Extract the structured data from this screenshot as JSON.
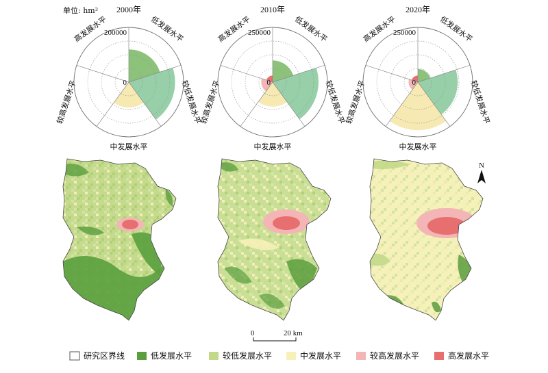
{
  "unit_label": "单位: hm²",
  "categories": [
    "低发展水平",
    "较低发展水平",
    "中发展水平",
    "较高发展水平",
    "高发展水平"
  ],
  "colors": {
    "low": "#5a9e3e",
    "lower": "#c2d98a",
    "mid": "#f7f0b8",
    "higher": "#f3b5b5",
    "high": "#e76f6f",
    "polar_low": "#8cc27a",
    "polar_lower": "#97cfa8",
    "polar_mid": "#f6e9b2"
  },
  "chart_data": [
    {
      "type": "polar-area",
      "title": "2000年",
      "categories": [
        "低发展水平",
        "较低发展水平",
        "中发展水平",
        "较高发展水平",
        "高发展水平"
      ],
      "values": [
        100000,
        200000,
        60000,
        0,
        0
      ],
      "ticks": [
        0,
        200000
      ],
      "rmax": 280000
    },
    {
      "type": "polar-area",
      "title": "2010年",
      "categories": [
        "低发展水平",
        "较低发展水平",
        "中发展水平",
        "较高发展水平",
        "高发展水平"
      ],
      "values": [
        55000,
        245000,
        70000,
        15000,
        5000
      ],
      "ticks": [
        0,
        250000
      ],
      "rmax": 350000
    },
    {
      "type": "polar-area",
      "title": "2020年",
      "categories": [
        "低发展水平",
        "较低发展水平",
        "中发展水平",
        "较高发展水平",
        "高发展水平"
      ],
      "values": [
        20000,
        185000,
        270000,
        10000,
        5000
      ],
      "ticks": [
        0,
        250000
      ],
      "rmax": 350000
    }
  ],
  "scale": {
    "start": "0",
    "end": "20 km"
  },
  "north": "N",
  "legend": [
    {
      "key": "boundary",
      "label": "研究区界线"
    },
    {
      "key": "low",
      "label": "低发展水平"
    },
    {
      "key": "lower",
      "label": "较低发展水平"
    },
    {
      "key": "mid",
      "label": "中发展水平"
    },
    {
      "key": "higher",
      "label": "较高发展水平"
    },
    {
      "key": "high",
      "label": "高发展水平"
    }
  ]
}
